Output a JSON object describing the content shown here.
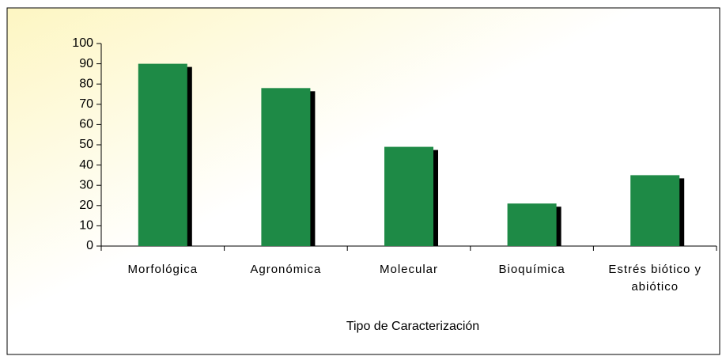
{
  "chart_data": {
    "type": "bar",
    "categories": [
      "Morfológica",
      "Agronómica",
      "Molecular",
      "Bioquímica",
      "Estrés biótico y abiótico"
    ],
    "values": [
      90,
      78,
      49,
      21,
      35
    ],
    "color": "#1e8a46",
    "x_label": "Tipo de Caracterización",
    "ylim": [
      0,
      100
    ],
    "yticks": [
      0,
      10,
      20,
      30,
      40,
      50,
      60,
      70,
      80,
      90,
      100
    ]
  }
}
